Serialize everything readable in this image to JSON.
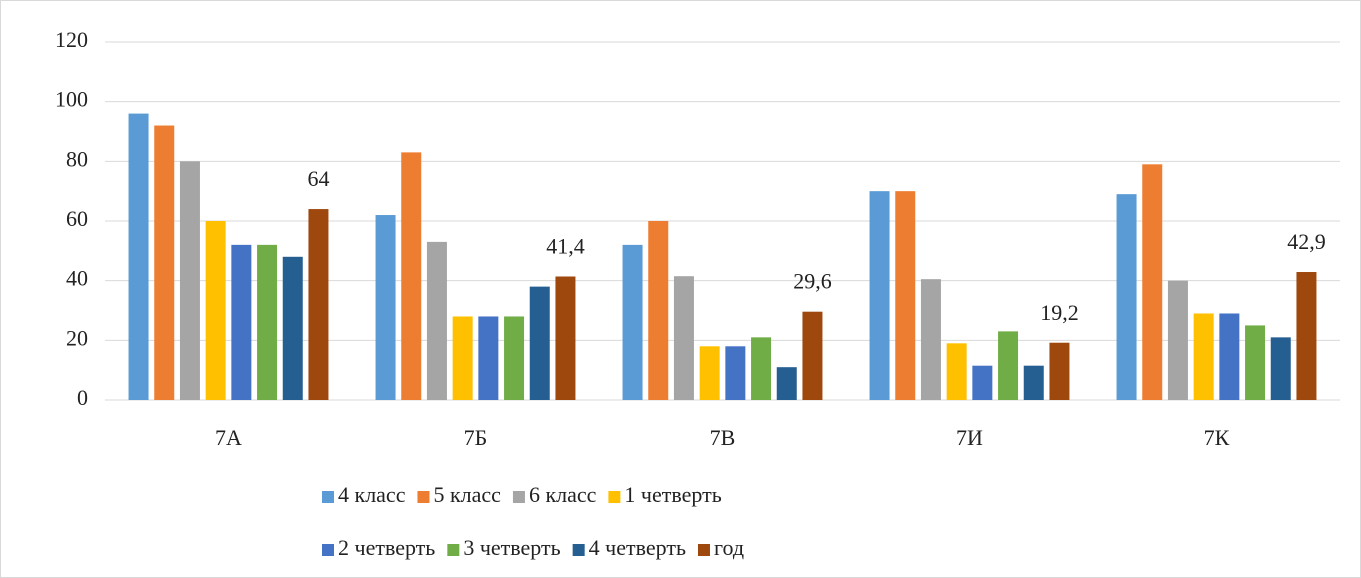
{
  "chart_data": {
    "type": "bar",
    "categories": [
      "7А",
      "7Б",
      "7В",
      "7И",
      "7К"
    ],
    "series": [
      {
        "name": "4 класс",
        "color": "#5b9bd5",
        "values": [
          96,
          62,
          52,
          70,
          69
        ]
      },
      {
        "name": "5 класс",
        "color": "#ed7d31",
        "values": [
          92,
          83,
          60,
          70,
          79
        ]
      },
      {
        "name": "6 класс",
        "color": "#a5a5a5",
        "values": [
          80,
          53,
          41.5,
          40.5,
          40
        ]
      },
      {
        "name": "1 четверть",
        "color": "#ffc000",
        "values": [
          60,
          28,
          18,
          19,
          29
        ]
      },
      {
        "name": "2 четверть",
        "color": "#4472c4",
        "values": [
          52,
          28,
          18,
          11.5,
          29
        ]
      },
      {
        "name": "3 четверть",
        "color": "#70ad47",
        "values": [
          52,
          28,
          21,
          23,
          25
        ]
      },
      {
        "name": "4 четверть",
        "color": "#255e91",
        "values": [
          48,
          38,
          11,
          11.5,
          21
        ]
      },
      {
        "name": "год",
        "color": "#9e480e",
        "values": [
          64,
          41.4,
          29.6,
          19.2,
          42.9
        ],
        "value_labels": [
          "64",
          "41,4",
          "29,6",
          "19,2",
          "42,9"
        ]
      }
    ],
    "ylim": [
      0,
      120
    ],
    "yticks": [
      0,
      20,
      40,
      60,
      80,
      100,
      120
    ],
    "grid": true,
    "legend": "bottom"
  }
}
